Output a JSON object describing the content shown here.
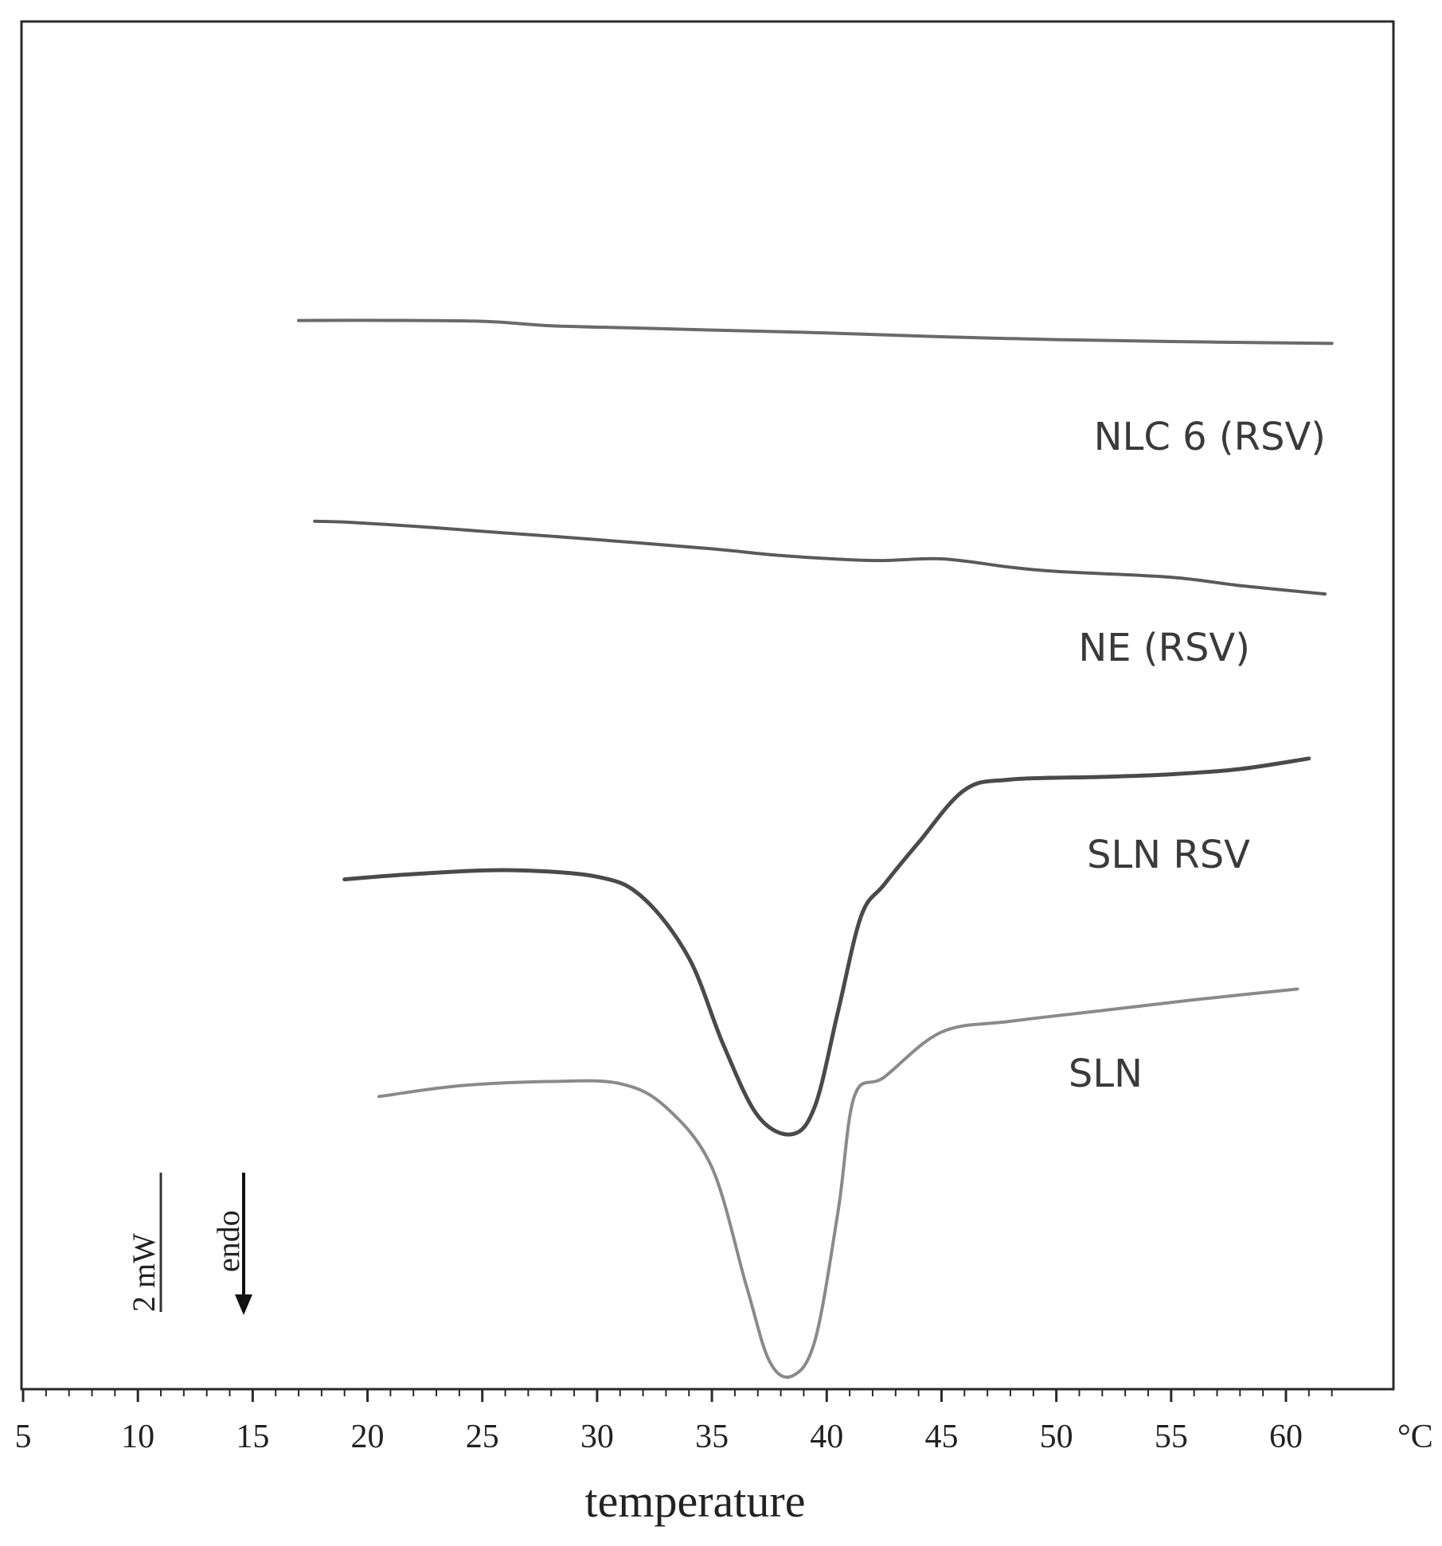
{
  "chart_data": {
    "type": "line",
    "title": "",
    "xlabel": "temperature",
    "x_unit": "°C",
    "ylabel": "",
    "xlim": [
      5,
      62
    ],
    "xticks": [
      5,
      10,
      15,
      20,
      25,
      30,
      35,
      40,
      45,
      50,
      55,
      60
    ],
    "minor_tick_step": 1,
    "grid": false,
    "scale_bar": {
      "label": "2 mW"
    },
    "direction": {
      "label": "endo",
      "arrow": "down"
    },
    "series": [
      {
        "name": "NLC 6 (RSV)",
        "color": "#6a6a6a",
        "points": [
          [
            17,
            0.2
          ],
          [
            20,
            0.22
          ],
          [
            25,
            0.12
          ],
          [
            28,
            -0.35
          ],
          [
            32,
            -0.6
          ],
          [
            35,
            -0.8
          ],
          [
            40,
            -1.1
          ],
          [
            45,
            -1.5
          ],
          [
            50,
            -1.8
          ],
          [
            55,
            -2.0
          ],
          [
            60,
            -2.15
          ],
          [
            62,
            -2.2
          ]
        ]
      },
      {
        "name": "NE (RSV)",
        "color": "#5a5a5a",
        "points": [
          [
            17.7,
            0.25
          ],
          [
            19,
            0.2
          ],
          [
            22,
            -0.05
          ],
          [
            25,
            -0.35
          ],
          [
            30,
            -0.85
          ],
          [
            35,
            -1.4
          ],
          [
            38,
            -1.8
          ],
          [
            42,
            -2.1
          ],
          [
            45,
            -2.0
          ],
          [
            48,
            -2.5
          ],
          [
            50,
            -2.75
          ],
          [
            55,
            -3.1
          ],
          [
            58,
            -3.6
          ],
          [
            61.7,
            -4.1
          ]
        ]
      },
      {
        "name": "SLN RSV",
        "color": "#4a4a4a",
        "points": [
          [
            19,
            -0.2
          ],
          [
            22,
            0.0
          ],
          [
            26,
            0.15
          ],
          [
            30,
            -0.1
          ],
          [
            32,
            -0.9
          ],
          [
            34,
            -3.2
          ],
          [
            35.5,
            -6.5
          ],
          [
            37,
            -9.2
          ],
          [
            38.5,
            -9.9
          ],
          [
            39.5,
            -8.8
          ],
          [
            40.5,
            -5.2
          ],
          [
            41.5,
            -1.6
          ],
          [
            42.5,
            -0.4
          ],
          [
            44,
            1.2
          ],
          [
            46,
            3.2
          ],
          [
            48,
            3.6
          ],
          [
            52,
            3.7
          ],
          [
            55,
            3.8
          ],
          [
            58,
            4.0
          ],
          [
            61,
            4.4
          ]
        ]
      },
      {
        "name": "SLN",
        "color": "#8a8a8a",
        "points": [
          [
            20.5,
            -0.2
          ],
          [
            24,
            0.3
          ],
          [
            28,
            0.5
          ],
          [
            31,
            0.4
          ],
          [
            33,
            -0.7
          ],
          [
            35,
            -3.5
          ],
          [
            36.5,
            -9.0
          ],
          [
            37.5,
            -12.5
          ],
          [
            38.5,
            -13.2
          ],
          [
            39.5,
            -11.5
          ],
          [
            40.5,
            -5.5
          ],
          [
            41.2,
            -0.2
          ],
          [
            42.5,
            0.7
          ],
          [
            45,
            2.8
          ],
          [
            48,
            3.3
          ],
          [
            52,
            3.8
          ],
          [
            56,
            4.3
          ],
          [
            60.5,
            4.8
          ]
        ]
      }
    ],
    "label_positions_note": ""
  }
}
